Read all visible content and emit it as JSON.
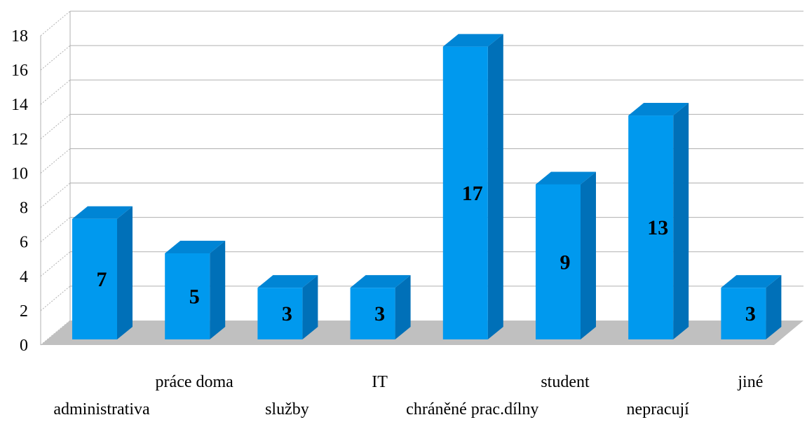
{
  "chart_data": {
    "type": "bar",
    "style": "3d-column",
    "categories": [
      "administrativa",
      "práce doma",
      "služby",
      "IT",
      "chráněné prac.dílny",
      "student",
      "nepracují",
      "jiné"
    ],
    "values": [
      7,
      5,
      3,
      3,
      17,
      9,
      13,
      3
    ],
    "data_labels": [
      "7",
      "5",
      "3",
      "3",
      "17",
      "9",
      "13",
      "3"
    ],
    "ylim": [
      0,
      18
    ],
    "yticks": [
      "0",
      "2",
      "4",
      "6",
      "8",
      "10",
      "12",
      "14",
      "16",
      "18"
    ],
    "grid": true,
    "legend": "none",
    "colors": {
      "bar_front": "#0099ee",
      "bar_side": "#0070b8",
      "bar_top": "#0085d5",
      "floor": "#c0c0c0",
      "grid": "#b0b0b0"
    }
  }
}
